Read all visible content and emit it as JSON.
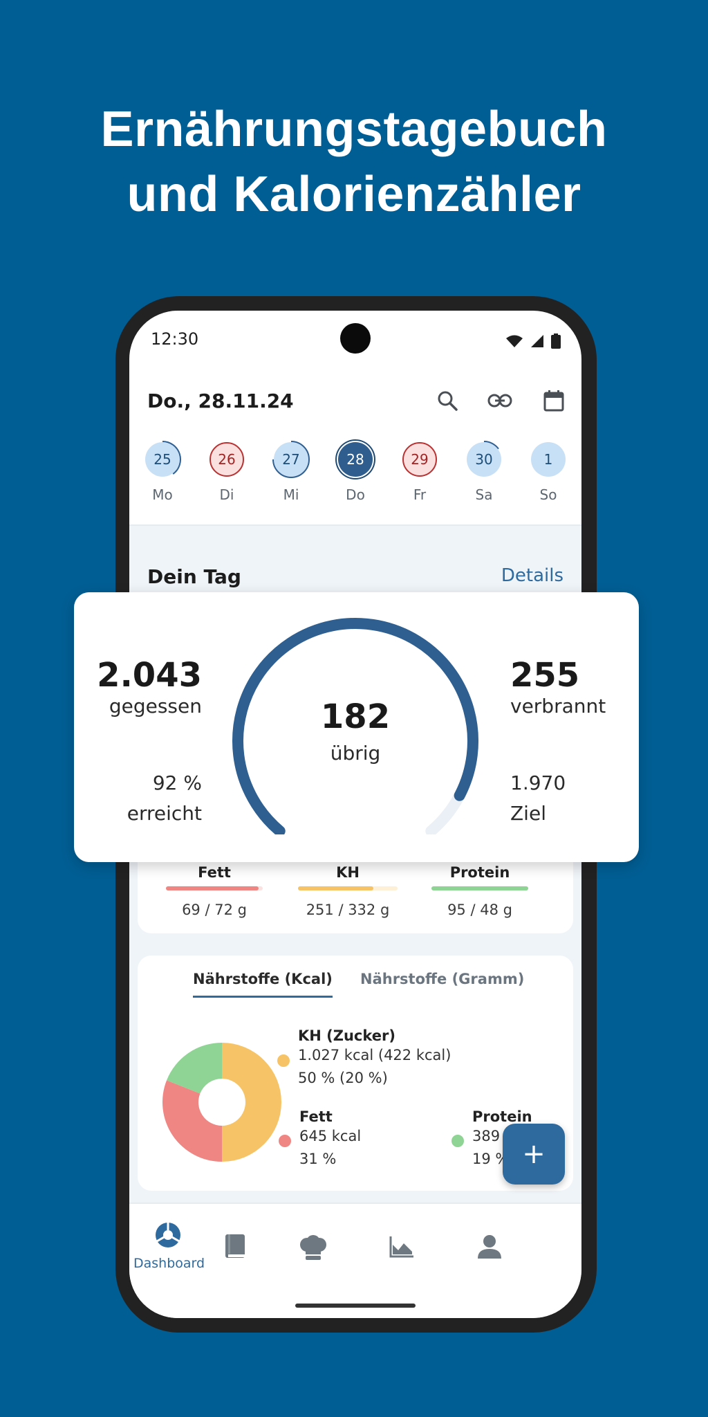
{
  "headline": {
    "line1": "Ernährungstagebuch",
    "line2": "und Kalorienzähler"
  },
  "colors": {
    "background": "#015e94",
    "accent": "#2e6a9e",
    "fat": "#ef8683",
    "carbs": "#f6c466",
    "protein": "#8fd494"
  },
  "status_bar": {
    "time": "12:30",
    "icons": [
      "wifi-icon",
      "signal-icon",
      "battery-icon"
    ]
  },
  "header": {
    "date": "Do., 28.11.24",
    "icons": [
      "search-icon",
      "link-icon",
      "calendar-icon"
    ]
  },
  "week": [
    {
      "num": "25",
      "name": "Mo",
      "state": "blue",
      "progress": 0.4
    },
    {
      "num": "26",
      "name": "Di",
      "state": "red",
      "progress": 1.0
    },
    {
      "num": "27",
      "name": "Mi",
      "state": "blue",
      "progress": 0.75
    },
    {
      "num": "28",
      "name": "Do",
      "state": "selected",
      "progress": 0.92
    },
    {
      "num": "29",
      "name": "Fr",
      "state": "red",
      "progress": 1.0
    },
    {
      "num": "30",
      "name": "Sa",
      "state": "blue",
      "progress": 0.15
    },
    {
      "num": "1",
      "name": "So",
      "state": "blue",
      "progress": 0
    }
  ],
  "section": {
    "title": "Dein Tag",
    "details": "Details"
  },
  "summary": {
    "eaten_value": "2.043",
    "eaten_label": "gegessen",
    "reached_value": "92 %",
    "reached_label": "erreicht",
    "remaining_value": "182",
    "remaining_label": "übrig",
    "burned_value": "255",
    "burned_label": "verbrannt",
    "goal_value": "1.970",
    "goal_label": "Ziel",
    "gauge_fraction": 0.92
  },
  "macros": [
    {
      "label": "Fett",
      "value": "69 / 72 g",
      "fraction": 0.96,
      "color": "#ef8683",
      "track": "#fbe2e1"
    },
    {
      "label": "KH",
      "value": "251 / 332 g",
      "fraction": 0.76,
      "color": "#f6c466",
      "track": "#fdf0d6"
    },
    {
      "label": "Protein",
      "value": "95 / 48 g",
      "fraction": 1.0,
      "color": "#8fd494",
      "track": "#e3f5e4"
    }
  ],
  "nutrient_tabs": {
    "active": "Nährstoffe (Kcal)",
    "inactive": "Nährstoffe (Gramm)"
  },
  "chart_data": {
    "type": "pie",
    "categories": [
      "KH",
      "Fett",
      "Protein"
    ],
    "values": [
      50,
      31,
      19
    ],
    "colors": [
      "#f6c466",
      "#ef8683",
      "#8fd494"
    ]
  },
  "legend": {
    "kh": {
      "title": "KH (Zucker)",
      "kcal": "1.027 kcal (422 kcal)",
      "pct": "50 % (20 %)"
    },
    "fett": {
      "title": "Fett",
      "kcal": "645 kcal",
      "pct": "31 %"
    },
    "protein": {
      "title": "Protein",
      "kcal": "389",
      "pct": "19 %"
    }
  },
  "fab": {
    "label": "+"
  },
  "nav": {
    "dashboard_label": "Dashboard"
  }
}
